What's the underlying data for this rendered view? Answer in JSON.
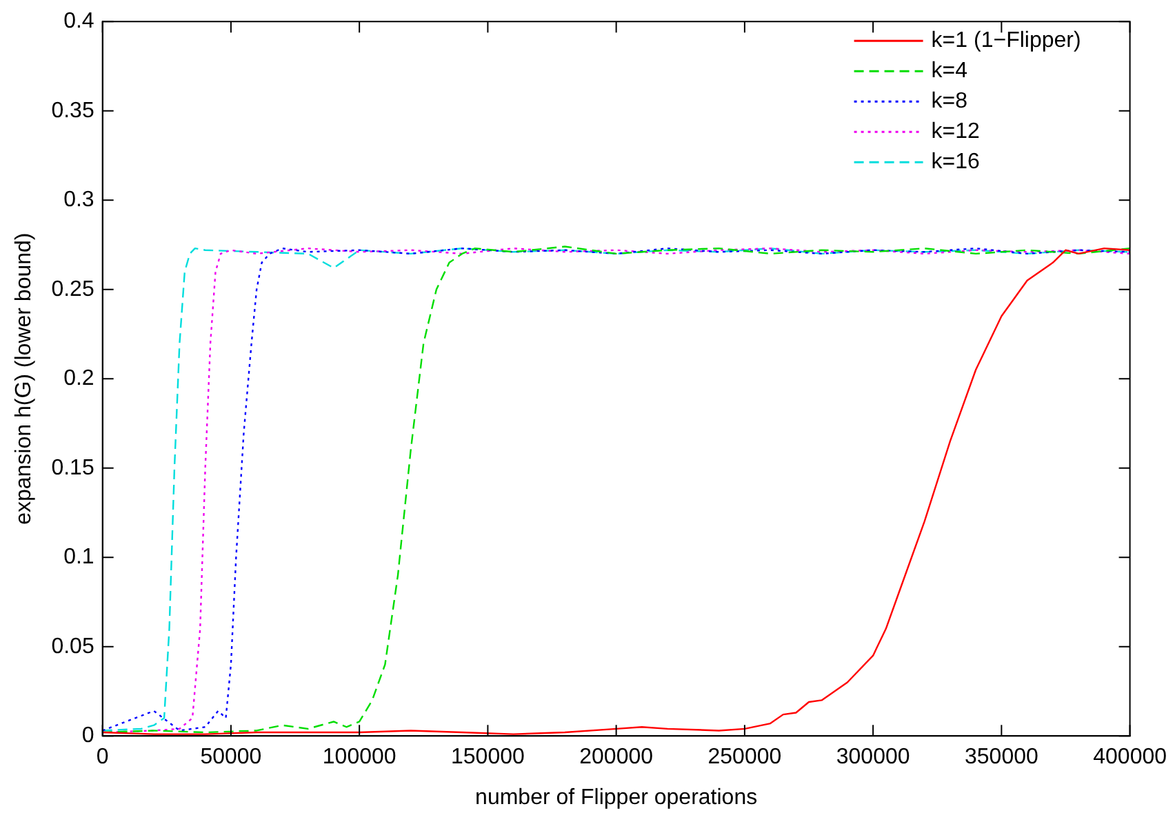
{
  "chart_data": {
    "type": "line",
    "xlabel": "number of Flipper operations",
    "ylabel": "expansion h(G) (lower bound)",
    "xlim": [
      0,
      400000
    ],
    "xticks": [
      0,
      50000,
      100000,
      150000,
      200000,
      250000,
      300000,
      350000,
      400000
    ],
    "ylim": [
      0,
      0.4
    ],
    "yticks": [
      0,
      0.05,
      0.1,
      0.15,
      0.2,
      0.25,
      0.3,
      0.35,
      0.4
    ],
    "grid": false,
    "legend": "top right",
    "marker": "none",
    "series": [
      {
        "name": "k=1 (1−Flipper)",
        "color": "#ff0000",
        "line_style": "solid",
        "x": [
          0,
          20000,
          40000,
          60000,
          80000,
          100000,
          120000,
          140000,
          160000,
          180000,
          200000,
          210000,
          220000,
          240000,
          250000,
          260000,
          265000,
          270000,
          275000,
          280000,
          290000,
          300000,
          305000,
          310000,
          320000,
          330000,
          340000,
          350000,
          360000,
          370000,
          375000,
          380000,
          390000,
          400000
        ],
        "values": [
          0.002,
          0.001,
          0.001,
          0.002,
          0.002,
          0.002,
          0.003,
          0.002,
          0.001,
          0.002,
          0.004,
          0.005,
          0.004,
          0.003,
          0.004,
          0.007,
          0.012,
          0.013,
          0.019,
          0.02,
          0.03,
          0.045,
          0.06,
          0.08,
          0.12,
          0.165,
          0.205,
          0.235,
          0.255,
          0.265,
          0.272,
          0.27,
          0.273,
          0.272
        ]
      },
      {
        "name": "k=4",
        "color": "#00dd00",
        "line_style": "dashed",
        "x": [
          0,
          20000,
          40000,
          60000,
          70000,
          80000,
          90000,
          95000,
          100000,
          105000,
          110000,
          115000,
          120000,
          125000,
          130000,
          135000,
          140000,
          145000,
          160000,
          180000,
          200000,
          220000,
          240000,
          260000,
          280000,
          300000,
          320000,
          340000,
          360000,
          380000,
          400000
        ],
        "values": [
          0.002,
          0.003,
          0.002,
          0.003,
          0.006,
          0.004,
          0.008,
          0.005,
          0.008,
          0.02,
          0.04,
          0.09,
          0.16,
          0.22,
          0.25,
          0.265,
          0.27,
          0.273,
          0.271,
          0.274,
          0.27,
          0.272,
          0.273,
          0.27,
          0.272,
          0.271,
          0.273,
          0.27,
          0.272,
          0.27,
          0.273
        ]
      },
      {
        "name": "k=8",
        "color": "#0000ff",
        "line_style": "dotted",
        "x": [
          0,
          20000,
          30000,
          40000,
          45000,
          48000,
          50000,
          52000,
          55000,
          58000,
          60000,
          62000,
          65000,
          70000,
          80000,
          100000,
          120000,
          140000,
          160000,
          180000,
          200000,
          220000,
          240000,
          260000,
          280000,
          300000,
          320000,
          340000,
          360000,
          380000,
          400000
        ],
        "values": [
          0.003,
          0.014,
          0.003,
          0.005,
          0.014,
          0.01,
          0.04,
          0.1,
          0.17,
          0.22,
          0.25,
          0.265,
          0.27,
          0.273,
          0.271,
          0.272,
          0.27,
          0.273,
          0.271,
          0.272,
          0.27,
          0.273,
          0.271,
          0.272,
          0.27,
          0.272,
          0.271,
          0.273,
          0.27,
          0.272,
          0.271
        ]
      },
      {
        "name": "k=12",
        "color": "#ee00ee",
        "line_style": "dotted",
        "x": [
          0,
          20000,
          30000,
          35000,
          38000,
          40000,
          42000,
          44000,
          46000,
          50000,
          60000,
          80000,
          100000,
          120000,
          140000,
          160000,
          180000,
          200000,
          220000,
          240000,
          260000,
          280000,
          300000,
          320000,
          340000,
          360000,
          380000,
          400000
        ],
        "values": [
          0.002,
          0.003,
          0.004,
          0.01,
          0.06,
          0.15,
          0.22,
          0.26,
          0.27,
          0.272,
          0.27,
          0.273,
          0.271,
          0.272,
          0.27,
          0.273,
          0.271,
          0.272,
          0.27,
          0.272,
          0.273,
          0.271,
          0.272,
          0.27,
          0.272,
          0.271,
          0.272,
          0.27
        ]
      },
      {
        "name": "k=16",
        "color": "#00dddd",
        "line_style": "dashed",
        "x": [
          0,
          15000,
          20000,
          24000,
          26000,
          28000,
          30000,
          32000,
          34000,
          36000,
          40000,
          60000,
          80000,
          90000,
          100000,
          120000,
          140000,
          160000,
          180000,
          200000,
          220000,
          240000,
          260000,
          280000,
          300000,
          320000,
          340000,
          360000,
          380000,
          400000
        ],
        "values": [
          0.003,
          0.004,
          0.006,
          0.01,
          0.06,
          0.15,
          0.22,
          0.26,
          0.27,
          0.273,
          0.272,
          0.271,
          0.27,
          0.262,
          0.272,
          0.27,
          0.273,
          0.271,
          0.272,
          0.27,
          0.272,
          0.271,
          0.273,
          0.27,
          0.272,
          0.271,
          0.272,
          0.27,
          0.272,
          0.271
        ]
      }
    ]
  }
}
